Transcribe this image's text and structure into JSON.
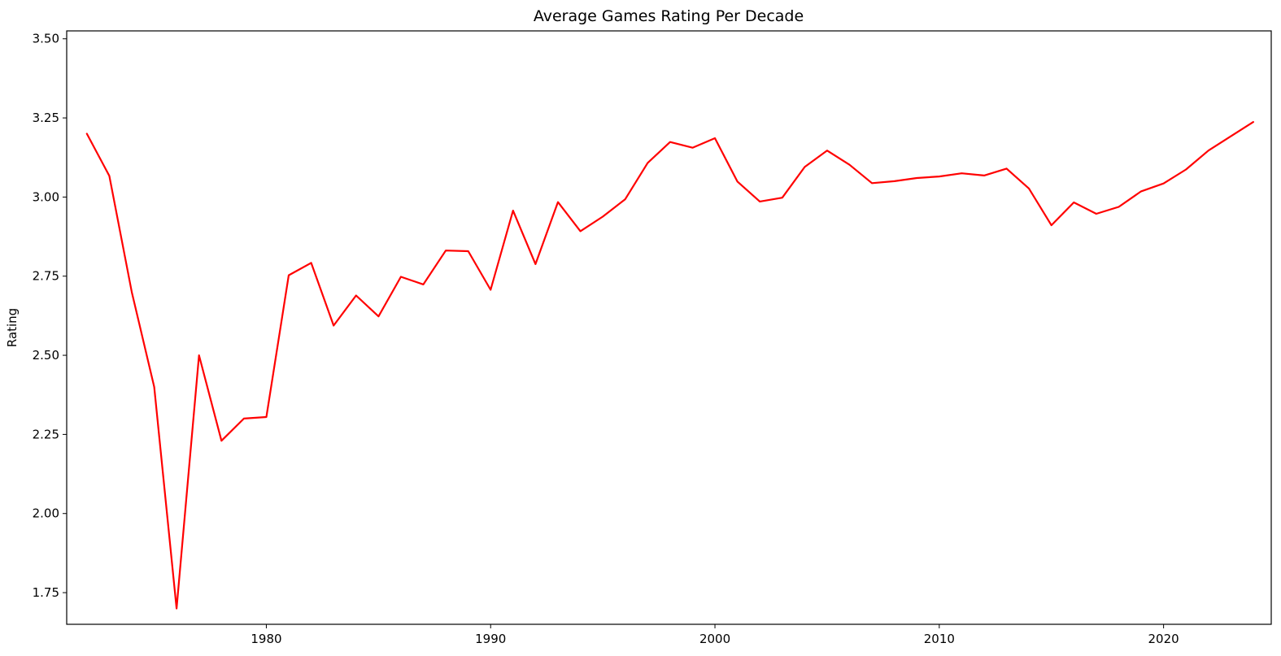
{
  "chart_data": {
    "type": "line",
    "title": "Average Games Rating Per Decade",
    "xlabel": "",
    "ylabel": "Rating",
    "xlim": [
      1971.1,
      2024.8
    ],
    "ylim": [
      1.65,
      3.525
    ],
    "x_ticks": [
      1980,
      1990,
      2000,
      2010,
      2020
    ],
    "y_ticks": [
      1.75,
      2.0,
      2.25,
      2.5,
      2.75,
      3.0,
      3.25,
      3.5
    ],
    "y_tick_labels": [
      "1.75",
      "2.00",
      "2.25",
      "2.50",
      "2.75",
      "3.00",
      "3.25",
      "3.50"
    ],
    "grid": false,
    "legend": "none",
    "series": [
      {
        "color": "#ff0000",
        "x": [
          1972,
          1973,
          1974,
          1975,
          1976,
          1977,
          1978,
          1979,
          1980,
          1981,
          1982,
          1983,
          1984,
          1985,
          1986,
          1987,
          1988,
          1989,
          1990,
          1991,
          1992,
          1993,
          1994,
          1995,
          1996,
          1997,
          1998,
          1999,
          2000,
          2001,
          2002,
          2003,
          2004,
          2005,
          2006,
          2007,
          2008,
          2009,
          2010,
          2011,
          2012,
          2013,
          2014,
          2015,
          2016,
          2017,
          2018,
          2019,
          2020,
          2021,
          2022,
          2023,
          2024
        ],
        "y": [
          3.2,
          3.067,
          2.7,
          2.4,
          1.7,
          2.5,
          2.23,
          2.3,
          2.305,
          2.753,
          2.792,
          2.594,
          2.689,
          2.623,
          2.748,
          2.724,
          2.831,
          2.829,
          2.707,
          2.957,
          2.788,
          2.984,
          2.892,
          2.938,
          2.993,
          3.108,
          3.174,
          3.156,
          3.186,
          3.049,
          2.986,
          2.998,
          3.095,
          3.147,
          3.102,
          3.044,
          3.05,
          3.06,
          3.065,
          3.075,
          3.068,
          3.09,
          3.027,
          2.911,
          2.983,
          2.947,
          2.969,
          3.018,
          3.043,
          3.087,
          3.147,
          3.192,
          3.237
        ]
      }
    ]
  }
}
